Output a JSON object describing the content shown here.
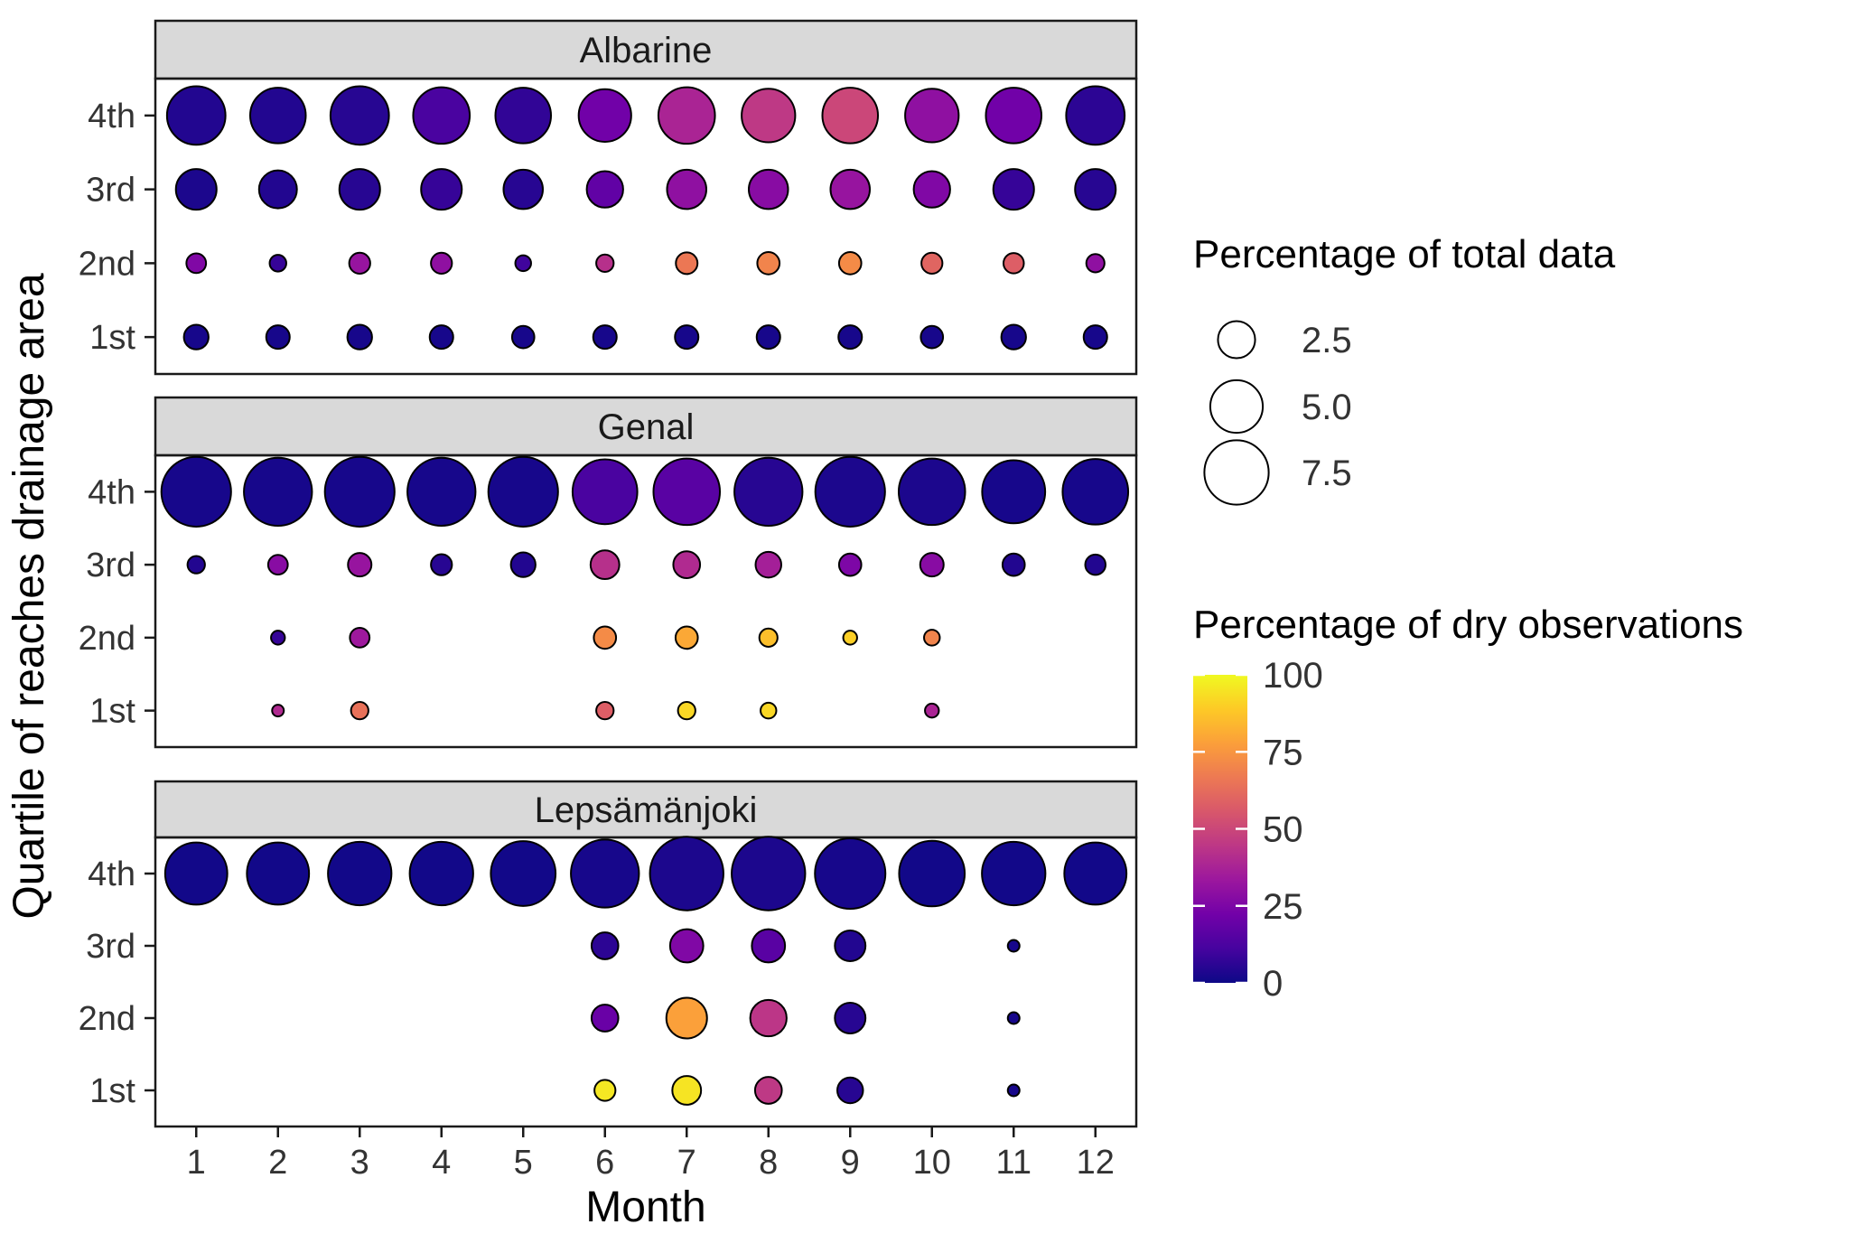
{
  "chart_data": {
    "type": "scatter",
    "subtype": "faceted-bubble",
    "xlabel": "Month",
    "ylabel": "Quartile of reaches drainage area",
    "months": [
      1,
      2,
      3,
      4,
      5,
      6,
      7,
      8,
      9,
      10,
      11,
      12
    ],
    "quartiles": [
      "1st",
      "2nd",
      "3rd",
      "4th"
    ],
    "size_legend": {
      "title": "Percentage of total data",
      "items": [
        {
          "value": 2.5,
          "label": "2.5"
        },
        {
          "value": 5.0,
          "label": "5.0"
        },
        {
          "value": 7.5,
          "label": "7.5"
        }
      ]
    },
    "color_legend": {
      "title": "Percentage of dry observations",
      "min": 0,
      "max": 100,
      "ticks": [
        0,
        25,
        50,
        75,
        100
      ],
      "palette": "plasma"
    },
    "palette_stops": [
      "#0d0887",
      "#46039f",
      "#7201a8",
      "#9c179e",
      "#bd3786",
      "#d8576b",
      "#ed7953",
      "#fb9f3a",
      "#fdca26",
      "#f0f921"
    ],
    "point_format": [
      "month",
      "quartile",
      "percent_of_total_data",
      "percent_dry_observations"
    ],
    "facets": [
      {
        "name": "Albarine",
        "points": [
          [
            1,
            "4th",
            6.2,
            4
          ],
          [
            2,
            "4th",
            5.6,
            4
          ],
          [
            3,
            "4th",
            6.2,
            5
          ],
          [
            4,
            "4th",
            5.8,
            12
          ],
          [
            5,
            "4th",
            5.6,
            7
          ],
          [
            6,
            "4th",
            5.0,
            22
          ],
          [
            7,
            "4th",
            5.8,
            38
          ],
          [
            8,
            "4th",
            5.2,
            45
          ],
          [
            9,
            "4th",
            5.6,
            50
          ],
          [
            10,
            "4th",
            5.2,
            30
          ],
          [
            11,
            "4th",
            5.6,
            22
          ],
          [
            12,
            "4th",
            6.2,
            6
          ],
          [
            1,
            "3rd",
            3.0,
            3
          ],
          [
            2,
            "3rd",
            2.6,
            4
          ],
          [
            3,
            "3rd",
            3.0,
            5
          ],
          [
            4,
            "3rd",
            3.0,
            8
          ],
          [
            5,
            "3rd",
            2.8,
            5
          ],
          [
            6,
            "3rd",
            2.4,
            18
          ],
          [
            7,
            "3rd",
            2.8,
            30
          ],
          [
            8,
            "3rd",
            2.8,
            28
          ],
          [
            9,
            "3rd",
            2.8,
            32
          ],
          [
            10,
            "3rd",
            2.4,
            26
          ],
          [
            11,
            "3rd",
            3.0,
            8
          ],
          [
            12,
            "3rd",
            3.0,
            5
          ],
          [
            1,
            "2nd",
            0.7,
            26
          ],
          [
            2,
            "2nd",
            0.5,
            8
          ],
          [
            3,
            "2nd",
            0.8,
            32
          ],
          [
            4,
            "2nd",
            0.8,
            30
          ],
          [
            5,
            "2nd",
            0.45,
            10
          ],
          [
            6,
            "2nd",
            0.55,
            42
          ],
          [
            7,
            "2nd",
            0.85,
            66
          ],
          [
            8,
            "2nd",
            0.9,
            70
          ],
          [
            9,
            "2nd",
            0.9,
            72
          ],
          [
            10,
            "2nd",
            0.8,
            60
          ],
          [
            11,
            "2nd",
            0.75,
            58
          ],
          [
            12,
            "2nd",
            0.6,
            30
          ],
          [
            1,
            "1st",
            1.1,
            2
          ],
          [
            2,
            "1st",
            1.0,
            2
          ],
          [
            3,
            "1st",
            1.1,
            2
          ],
          [
            4,
            "1st",
            1.0,
            2
          ],
          [
            5,
            "1st",
            0.9,
            2
          ],
          [
            6,
            "1st",
            1.0,
            2
          ],
          [
            7,
            "1st",
            1.0,
            2
          ],
          [
            8,
            "1st",
            1.0,
            2
          ],
          [
            9,
            "1st",
            1.0,
            2
          ],
          [
            10,
            "1st",
            0.9,
            2
          ],
          [
            11,
            "1st",
            1.1,
            2
          ],
          [
            12,
            "1st",
            1.0,
            2
          ]
        ]
      },
      {
        "name": "Genal",
        "points": [
          [
            1,
            "4th",
            8.8,
            2
          ],
          [
            2,
            "4th",
            8.4,
            2
          ],
          [
            3,
            "4th",
            8.8,
            2
          ],
          [
            4,
            "4th",
            8.4,
            2
          ],
          [
            5,
            "4th",
            8.8,
            2
          ],
          [
            6,
            "4th",
            7.6,
            12
          ],
          [
            7,
            "4th",
            8.0,
            16
          ],
          [
            8,
            "4th",
            8.4,
            5
          ],
          [
            9,
            "4th",
            8.8,
            3
          ],
          [
            10,
            "4th",
            8.0,
            3
          ],
          [
            11,
            "4th",
            7.2,
            2
          ],
          [
            12,
            "4th",
            7.8,
            2
          ],
          [
            1,
            "3rd",
            0.55,
            4
          ],
          [
            2,
            "3rd",
            0.7,
            28
          ],
          [
            3,
            "3rd",
            1.0,
            32
          ],
          [
            4,
            "3rd",
            0.8,
            5
          ],
          [
            5,
            "3rd",
            1.1,
            4
          ],
          [
            6,
            "3rd",
            1.5,
            42
          ],
          [
            7,
            "3rd",
            1.3,
            40
          ],
          [
            8,
            "3rd",
            1.2,
            36
          ],
          [
            9,
            "3rd",
            0.9,
            25
          ],
          [
            10,
            "3rd",
            1.0,
            28
          ],
          [
            11,
            "3rd",
            0.9,
            4
          ],
          [
            12,
            "3rd",
            0.75,
            4
          ],
          [
            2,
            "2nd",
            0.35,
            8
          ],
          [
            3,
            "2nd",
            0.7,
            34
          ],
          [
            6,
            "2nd",
            0.9,
            72
          ],
          [
            7,
            "2nd",
            0.9,
            80
          ],
          [
            8,
            "2nd",
            0.6,
            86
          ],
          [
            9,
            "2nd",
            0.35,
            90
          ],
          [
            10,
            "2nd",
            0.45,
            70
          ],
          [
            2,
            "1st",
            0.25,
            40
          ],
          [
            3,
            "1st",
            0.55,
            64
          ],
          [
            6,
            "1st",
            0.55,
            58
          ],
          [
            7,
            "1st",
            0.55,
            92
          ],
          [
            8,
            "1st",
            0.45,
            92
          ],
          [
            10,
            "1st",
            0.35,
            38
          ]
        ]
      },
      {
        "name": "Lepsämänjoki",
        "points": [
          [
            1,
            "4th",
            7.0,
            1
          ],
          [
            2,
            "4th",
            7.0,
            1
          ],
          [
            3,
            "4th",
            7.3,
            1
          ],
          [
            4,
            "4th",
            7.3,
            1
          ],
          [
            5,
            "4th",
            7.6,
            1
          ],
          [
            6,
            "4th",
            8.4,
            2
          ],
          [
            7,
            "4th",
            9.8,
            3
          ],
          [
            8,
            "4th",
            9.8,
            3
          ],
          [
            9,
            "4th",
            9.0,
            2
          ],
          [
            10,
            "4th",
            7.8,
            1
          ],
          [
            11,
            "4th",
            7.3,
            1
          ],
          [
            12,
            "4th",
            7.0,
            1
          ],
          [
            6,
            "3rd",
            1.3,
            6
          ],
          [
            7,
            "3rd",
            2.0,
            26
          ],
          [
            8,
            "3rd",
            2.0,
            16
          ],
          [
            9,
            "3rd",
            1.7,
            4
          ],
          [
            11,
            "3rd",
            0.25,
            2
          ],
          [
            6,
            "2nd",
            1.3,
            20
          ],
          [
            7,
            "2nd",
            3.0,
            78
          ],
          [
            8,
            "2nd",
            2.4,
            44
          ],
          [
            9,
            "2nd",
            1.7,
            5
          ],
          [
            11,
            "2nd",
            0.25,
            2
          ],
          [
            6,
            "1st",
            0.8,
            96
          ],
          [
            7,
            "1st",
            1.5,
            95
          ],
          [
            8,
            "1st",
            1.3,
            45
          ],
          [
            9,
            "1st",
            1.2,
            5
          ],
          [
            11,
            "1st",
            0.25,
            2
          ]
        ]
      }
    ]
  },
  "styles": {
    "panel_header_bg": "#d9d9d9",
    "panel_border": "#1a1a1a",
    "circle_stroke": "#000000",
    "background": "#ffffff"
  }
}
